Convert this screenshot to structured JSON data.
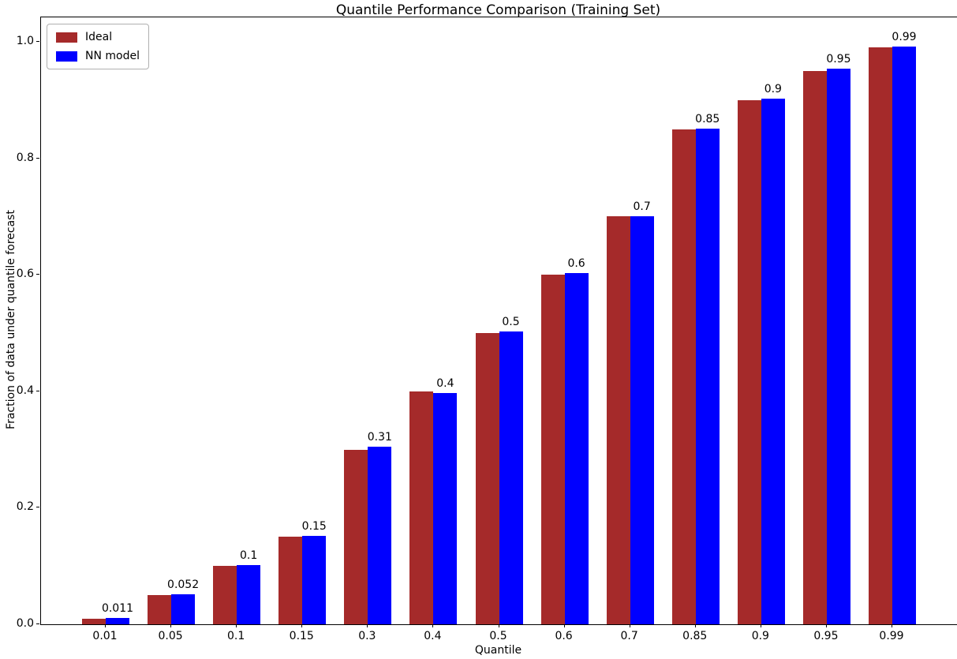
{
  "chart_data": {
    "type": "bar",
    "title": "Quantile Performance Comparison (Training Set)",
    "xlabel": "Quantile",
    "ylabel": "Fraction of data under quantile forecast",
    "categories": [
      "0.01",
      "0.05",
      "0.1",
      "0.15",
      "0.3",
      "0.4",
      "0.5",
      "0.6",
      "0.7",
      "0.85",
      "0.9",
      "0.95",
      "0.99"
    ],
    "series": [
      {
        "name": "Ideal",
        "color": "#A52A2A",
        "values": [
          0.01,
          0.05,
          0.1,
          0.15,
          0.3,
          0.4,
          0.5,
          0.6,
          0.7,
          0.85,
          0.9,
          0.95,
          0.99
        ]
      },
      {
        "name": "NN model",
        "color": "#0000FF",
        "values": [
          0.011,
          0.052,
          0.102,
          0.152,
          0.305,
          0.397,
          0.503,
          0.603,
          0.7,
          0.851,
          0.902,
          0.954,
          0.992
        ]
      }
    ],
    "bar_value_labels": [
      "0.011",
      "0.052",
      "0.1",
      "0.15",
      "0.31",
      "0.4",
      "0.5",
      "0.6",
      "0.7",
      "0.85",
      "0.9",
      "0.95",
      "0.99"
    ],
    "ytick_labels": [
      "0.0",
      "0.2",
      "0.4",
      "0.6",
      "0.8",
      "1.0"
    ],
    "ylim": [
      0,
      1.042
    ],
    "grid": false,
    "legend": {
      "position": "upper-left"
    }
  }
}
